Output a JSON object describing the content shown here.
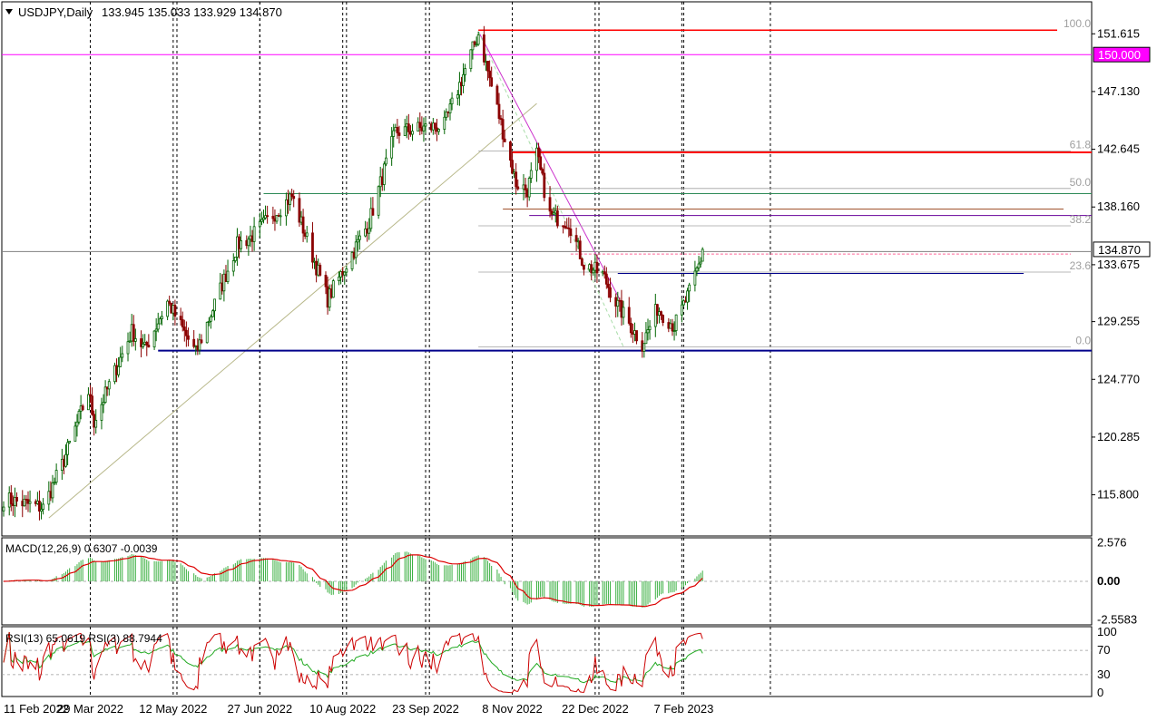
{
  "header": {
    "symbol_label": "USDJPY,Daily",
    "ohlc_label": "133.945 135.033 133.929 134.870"
  },
  "colors": {
    "bull_candle": "#006400",
    "bear_candle": "#8b0000",
    "support_line": "#00008b",
    "resistance_line": "#ff0000",
    "level_150_line": "#ff00ff",
    "fib_line": "#a0a0a0",
    "trend_line": "#b8b88a",
    "macd_hist": "#3cb043",
    "macd_signal": "#dd0000",
    "rsi13_line": "#22aa22",
    "rsi3_line": "#cc0000"
  },
  "price_axis": {
    "ticks": [
      "151.615",
      "147.130",
      "142.645",
      "138.160",
      "133.675",
      "129.255",
      "124.770",
      "120.285",
      "115.800"
    ],
    "current_price_label": "134.870",
    "level_150_label": "150.000"
  },
  "fib_labels": [
    "100.0",
    "61.8",
    "50.0",
    "38.2",
    "23.6",
    "0.0"
  ],
  "macd": {
    "label": "MACD(12,26,9) 0.6307 -0.0039",
    "ticks": [
      "2.576",
      "0.00",
      "-2.5583"
    ]
  },
  "rsi": {
    "label": "RSI(13) 65.0619  RSI(3) 88.7944",
    "ticks": [
      "100",
      "70",
      "30",
      "0"
    ]
  },
  "time_axis": {
    "labels": [
      "11 Feb 2022",
      "29 Mar 2022",
      "12 May 2022",
      "27 Jun 2022",
      "10 Aug 2022",
      "23 Sep 2022",
      "8 Nov 2022",
      "22 Dec 2022",
      "7 Feb 2023"
    ]
  },
  "chart_data": {
    "type": "candlestick",
    "instrument": "USDJPY",
    "timeframe": "Daily",
    "last_ohlc": {
      "open": 133.945,
      "high": 135.033,
      "low": 133.929,
      "close": 134.87
    },
    "y_range": [
      112.6,
      154.1
    ],
    "price_path": [
      [
        "2022-02-11",
        115.5
      ],
      [
        "2022-03-04",
        114.8
      ],
      [
        "2022-03-15",
        118.5
      ],
      [
        "2022-03-28",
        123.8
      ],
      [
        "2022-03-31",
        121.5
      ],
      [
        "2022-04-20",
        128.5
      ],
      [
        "2022-04-27",
        127.1
      ],
      [
        "2022-05-09",
        130.8
      ],
      [
        "2022-05-24",
        126.8
      ],
      [
        "2022-06-15",
        135.2
      ],
      [
        "2022-06-22",
        135.8
      ],
      [
        "2022-07-14",
        139.0
      ],
      [
        "2022-08-02",
        131.0
      ],
      [
        "2022-08-24",
        137.0
      ],
      [
        "2022-09-07",
        144.0
      ],
      [
        "2022-10-03",
        144.5
      ],
      [
        "2022-10-21",
        151.6
      ],
      [
        "2022-11-10",
        140.0
      ],
      [
        "2022-11-16",
        139.5
      ],
      [
        "2022-11-21",
        142.2
      ],
      [
        "2022-11-28",
        137.5
      ],
      [
        "2022-12-08",
        137.0
      ],
      [
        "2022-12-16",
        133.7
      ],
      [
        "2022-12-26",
        132.9
      ],
      [
        "2023-01-03",
        130.5
      ],
      [
        "2023-01-16",
        127.5
      ],
      [
        "2023-01-24",
        130.3
      ],
      [
        "2023-02-02",
        128.9
      ],
      [
        "2023-02-10",
        131.5
      ],
      [
        "2023-02-17",
        134.5
      ]
    ],
    "horizontal_levels": [
      151.9,
      150.0,
      142.4,
      139.2,
      137.5,
      134.7,
      134.5,
      133.0,
      127.0
    ],
    "fibonacci": {
      "high": 151.9,
      "low": 127.3,
      "levels": [
        100.0,
        61.8,
        50.0,
        38.2,
        23.6,
        0.0
      ]
    },
    "trend_lines": [
      {
        "from": [
          "2022-03-07",
          114.0
        ],
        "to": [
          "2022-11-21",
          146.2
        ]
      },
      {
        "from": [
          "2022-10-21",
          151.8
        ],
        "to": [
          "2023-01-04",
          131.0
        ]
      }
    ],
    "macd": {
      "params": "12,26,9",
      "main": 0.6307,
      "signal": -0.0039,
      "y_range": [
        -2.9,
        2.9
      ]
    },
    "rsi": {
      "rsi13": 65.0619,
      "rsi3": 88.7944,
      "levels": [
        70,
        30
      ]
    }
  }
}
